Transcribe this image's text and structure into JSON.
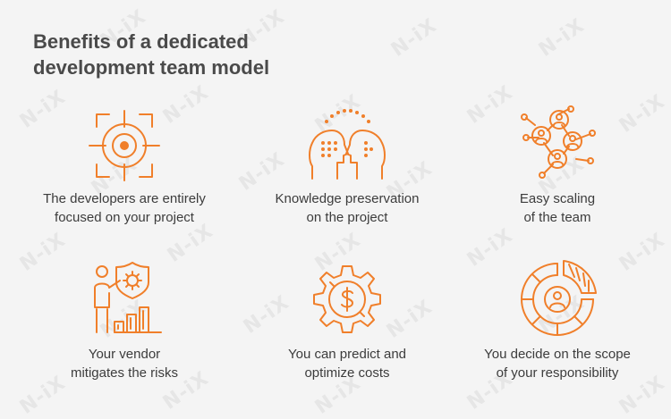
{
  "title": {
    "line1": "Benefits of a dedicated",
    "line2": "development team model"
  },
  "watermark_text": "N-iX",
  "accent_color": "#f07f2a",
  "benefits": [
    {
      "icon": "target-crosshair-icon",
      "line1": "The developers are entirely",
      "line2": "focused on your project"
    },
    {
      "icon": "knowledge-transfer-heads-icon",
      "line1": "Knowledge preservation",
      "line2": "on the project"
    },
    {
      "icon": "team-network-icon",
      "line1": "Easy scaling",
      "line2": "of the team"
    },
    {
      "icon": "risk-shield-person-icon",
      "line1": "Your vendor",
      "line2": "mitigates the risks"
    },
    {
      "icon": "gear-dollar-icon",
      "line1": "You can predict and",
      "line2": "optimize costs"
    },
    {
      "icon": "scope-pie-person-icon",
      "line1": "You decide on the scope",
      "line2": "of your responsibility"
    }
  ]
}
